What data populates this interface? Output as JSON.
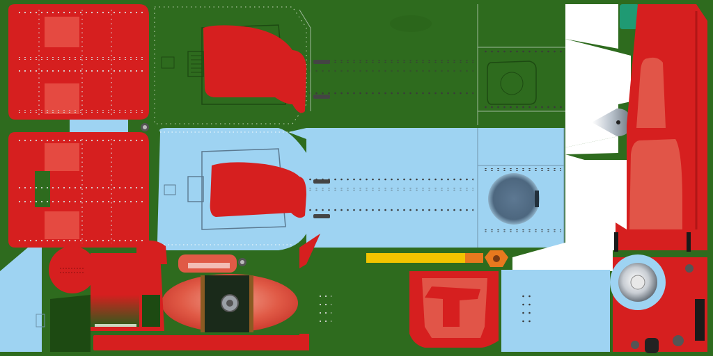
{
  "texture_atlas": {
    "colors": {
      "background": "#2e6b1e",
      "background_dark": "#265c18",
      "red_paint": "#d61f1f",
      "red_dark": "#b01616",
      "red_light": "#e8554a",
      "sky_blue": "#9ed3f2",
      "white": "#ffffff",
      "yellow": "#f2c300",
      "orange": "#e8791e",
      "rivet_light": "#d8d8d8",
      "rivet_dark": "#3a3a3a",
      "hatch_blue_grey": "#55708a",
      "chrome": "#b9c2cc",
      "beacon_green": "#1f9a73"
    },
    "icons": [
      "rivet-icon",
      "round-inspection-hatch-icon",
      "propeller-spinner-icon",
      "wheel-hub-icon",
      "exhaust-nut-icon"
    ]
  }
}
